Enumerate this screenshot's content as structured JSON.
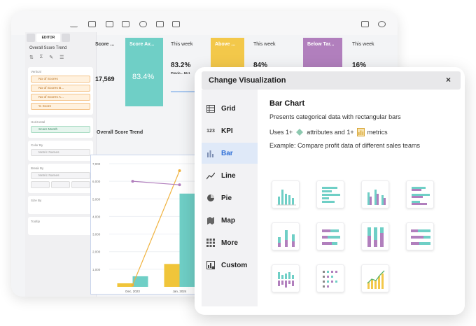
{
  "colors": {
    "teal": "#6fcfc6",
    "purple": "#b17fbd",
    "orange": "#f0b23e",
    "yellow": "#f3c84a",
    "accent": "#2e6fd6"
  },
  "panel": {
    "tabs": [
      "",
      "EDITOR",
      ""
    ],
    "title": "Overall Score Trend",
    "vertical_label": "Vertical",
    "vertical_items": [
      "No of Scores",
      "No of Scores B...",
      "No of Scores A...",
      "% Score"
    ],
    "horizontal_label": "Horizontal",
    "horizontal_item": "Score Month",
    "color_by_label": "Color By",
    "color_by_item": "Metric Names",
    "break_by_label": "Break By",
    "break_by_item": "Metric Names",
    "size_by_label": "Size By",
    "tooltip_label": "Tooltip"
  },
  "kpis": {
    "score_title": "Score ...",
    "score_value": "17,569",
    "avg_title": "Score Av...",
    "avg_value": "83.4%",
    "this_week_1": "This week",
    "this_week_value": "83.2%",
    "prev_label": "Previo... 84.1",
    "above_title": "Above ...",
    "this_week_2": "This week",
    "this_week_2_value": "84%",
    "below_title": "Below Tar...",
    "this_week_3": "This week",
    "this_week_3_value": "16%"
  },
  "trend": {
    "title": "Overall Score Trend",
    "y_ticks": [
      "7,000",
      "6,000",
      "5,000",
      "4,000",
      "3,000",
      "2,000",
      "1,000"
    ],
    "x_labels": [
      "Dec, 2023",
      "Jan, 2024"
    ]
  },
  "chart_data": {
    "type": "bar",
    "categories": [
      "Dec, 2023",
      "Jan, 2024"
    ],
    "ylim": [
      0,
      7000
    ],
    "series": [
      {
        "color": "#f0c53a",
        "values": [
          200,
          1300
        ]
      },
      {
        "color": "#6fcfc6",
        "values": [
          600,
          5300
        ]
      }
    ],
    "lines": [
      {
        "color": "#f0b23e",
        "values": [
          100,
          6600
        ]
      },
      {
        "color": "#b17fbd",
        "values": [
          6000,
          5800
        ]
      }
    ]
  },
  "modal": {
    "title": "Change Visualization",
    "close": "×",
    "types": [
      {
        "label": "Grid",
        "icon": "grid-icon"
      },
      {
        "label": "KPI",
        "icon": "kpi-icon"
      },
      {
        "label": "Bar",
        "icon": "bar-icon"
      },
      {
        "label": "Line",
        "icon": "line-icon"
      },
      {
        "label": "Pie",
        "icon": "pie-icon"
      },
      {
        "label": "Map",
        "icon": "map-icon"
      },
      {
        "label": "More",
        "icon": "more-icon"
      },
      {
        "label": "Custom",
        "icon": "custom-icon"
      }
    ],
    "selected": "Bar",
    "kpi_icon_text": "123",
    "detail": {
      "title": "Bar Chart",
      "description": "Presents categorical data with rectangular bars",
      "uses_prefix": "Uses 1+",
      "uses_attr": "attributes and 1+",
      "uses_metrics": "metrics",
      "example": "Example: Compare profit data of different sales teams"
    }
  }
}
